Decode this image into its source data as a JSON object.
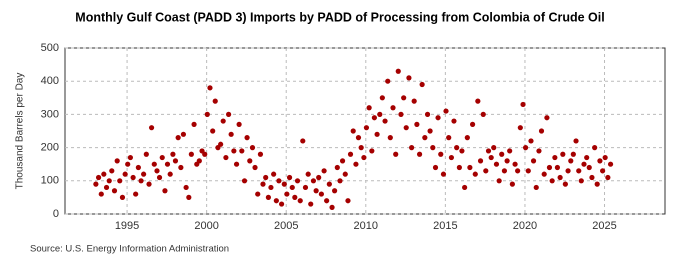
{
  "chart_data": {
    "type": "scatter",
    "title": "Monthly Gulf Coast (PADD 3) Imports by PADD of Processing from Colombia of Crude Oil",
    "y_label": "Thousand Barrels per Day",
    "source": "Source: U.S. Energy Information Administration",
    "xlim": [
      1991.1,
      2028.8
    ],
    "xticks": [
      1995,
      2000,
      2005,
      2010,
      2015,
      2020,
      2025
    ],
    "ylim": [
      0,
      500
    ],
    "yticks": [
      0,
      100,
      200,
      300,
      400,
      500
    ],
    "grid": true,
    "series": [
      {
        "name": "Colombia",
        "color": "#a50000",
        "x": [
          1993.04,
          1993.21,
          1993.38,
          1993.54,
          1993.71,
          1993.88,
          1994.04,
          1994.21,
          1994.38,
          1994.54,
          1994.71,
          1994.88,
          1995.04,
          1995.21,
          1995.38,
          1995.54,
          1995.71,
          1995.88,
          1996.04,
          1996.21,
          1996.38,
          1996.54,
          1996.71,
          1996.88,
          1997.04,
          1997.21,
          1997.38,
          1997.54,
          1997.71,
          1997.88,
          1998.04,
          1998.21,
          1998.38,
          1998.54,
          1998.71,
          1998.88,
          1999.04,
          1999.21,
          1999.38,
          1999.54,
          1999.71,
          1999.88,
          2000.04,
          2000.21,
          2000.38,
          2000.54,
          2000.71,
          2000.88,
          2001.04,
          2001.21,
          2001.38,
          2001.54,
          2001.71,
          2001.88,
          2002.04,
          2002.21,
          2002.38,
          2002.54,
          2002.71,
          2002.88,
          2003.04,
          2003.21,
          2003.38,
          2003.54,
          2003.71,
          2003.88,
          2004.04,
          2004.21,
          2004.38,
          2004.54,
          2004.71,
          2004.88,
          2005.04,
          2005.21,
          2005.38,
          2005.54,
          2005.71,
          2005.88,
          2006.04,
          2006.21,
          2006.38,
          2006.54,
          2006.71,
          2006.88,
          2007.04,
          2007.21,
          2007.38,
          2007.54,
          2007.71,
          2007.88,
          2008.04,
          2008.21,
          2008.38,
          2008.54,
          2008.71,
          2008.88,
          2009.04,
          2009.21,
          2009.38,
          2009.54,
          2009.71,
          2009.88,
          2010.04,
          2010.21,
          2010.38,
          2010.54,
          2010.71,
          2010.88,
          2011.04,
          2011.21,
          2011.38,
          2011.54,
          2011.71,
          2011.88,
          2012.04,
          2012.21,
          2012.38,
          2012.54,
          2012.71,
          2012.88,
          2013.04,
          2013.21,
          2013.38,
          2013.54,
          2013.71,
          2013.88,
          2014.04,
          2014.21,
          2014.38,
          2014.54,
          2014.71,
          2014.88,
          2015.04,
          2015.21,
          2015.38,
          2015.54,
          2015.71,
          2015.88,
          2016.04,
          2016.21,
          2016.38,
          2016.54,
          2016.71,
          2016.88,
          2017.04,
          2017.21,
          2017.38,
          2017.54,
          2017.71,
          2017.88,
          2018.04,
          2018.21,
          2018.38,
          2018.54,
          2018.71,
          2018.88,
          2019.04,
          2019.21,
          2019.38,
          2019.54,
          2019.71,
          2019.88,
          2020.04,
          2020.21,
          2020.38,
          2020.54,
          2020.71,
          2020.88,
          2021.04,
          2021.21,
          2021.38,
          2021.54,
          2021.71,
          2021.88,
          2022.04,
          2022.21,
          2022.38,
          2022.54,
          2022.71,
          2022.88,
          2023.04,
          2023.21,
          2023.38,
          2023.54,
          2023.71,
          2023.88,
          2024.04,
          2024.21,
          2024.38,
          2024.54,
          2024.71,
          2024.88,
          2025.04,
          2025.21,
          2025.38
        ],
        "values": [
          90,
          110,
          60,
          120,
          80,
          100,
          130,
          70,
          160,
          100,
          50,
          120,
          150,
          170,
          110,
          60,
          140,
          100,
          120,
          180,
          90,
          260,
          150,
          130,
          110,
          170,
          70,
          150,
          120,
          180,
          160,
          230,
          140,
          240,
          80,
          50,
          180,
          270,
          150,
          160,
          190,
          180,
          300,
          380,
          250,
          340,
          200,
          210,
          280,
          170,
          300,
          240,
          190,
          150,
          270,
          190,
          100,
          230,
          160,
          200,
          140,
          60,
          180,
          90,
          110,
          50,
          80,
          120,
          40,
          100,
          30,
          90,
          60,
          110,
          80,
          50,
          100,
          40,
          220,
          80,
          120,
          30,
          100,
          70,
          110,
          60,
          130,
          40,
          90,
          20,
          70,
          140,
          100,
          160,
          120,
          40,
          180,
          250,
          150,
          230,
          200,
          170,
          260,
          320,
          190,
          290,
          240,
          300,
          350,
          280,
          400,
          230,
          320,
          180,
          430,
          300,
          350,
          260,
          410,
          200,
          340,
          270,
          180,
          390,
          230,
          300,
          250,
          200,
          140,
          290,
          180,
          120,
          310,
          230,
          170,
          280,
          200,
          140,
          190,
          80,
          230,
          140,
          270,
          120,
          340,
          160,
          300,
          130,
          190,
          170,
          200,
          150,
          100,
          180,
          130,
          160,
          190,
          90,
          150,
          130,
          260,
          330,
          200,
          130,
          220,
          160,
          80,
          190,
          250,
          120,
          290,
          140,
          100,
          170,
          140,
          110,
          180,
          90,
          130,
          160,
          180,
          220,
          130,
          100,
          150,
          170,
          140,
          110,
          200,
          90,
          160,
          130,
          170,
          110,
          150
        ]
      }
    ]
  }
}
